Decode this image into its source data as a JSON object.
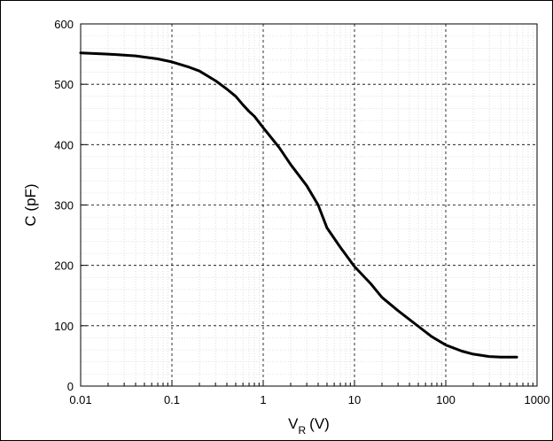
{
  "chart_data": {
    "type": "line",
    "x_scale": "log",
    "xlim": [
      0.01,
      1000
    ],
    "ylim": [
      0,
      600
    ],
    "x_ticks": [
      0.01,
      0.1,
      1,
      10,
      100,
      1000
    ],
    "x_tick_labels": [
      "0.01",
      "0.1",
      "1",
      "10",
      "100",
      "1000"
    ],
    "y_ticks": [
      0,
      100,
      200,
      300,
      400,
      500,
      600
    ],
    "y_tick_labels": [
      "0",
      "100",
      "200",
      "300",
      "400",
      "500",
      "600"
    ],
    "xlabel_main": "V",
    "xlabel_sub": "R",
    "xlabel_unit": "(V)",
    "ylabel": "C (pF)",
    "grid": true,
    "line_color": "#000000",
    "series": [
      {
        "x": [
          0.01,
          0.02,
          0.04,
          0.07,
          0.1,
          0.15,
          0.2,
          0.3,
          0.4,
          0.5,
          0.6,
          0.7,
          0.8,
          1.0,
          1.5,
          2,
          3,
          4,
          5,
          7,
          10,
          15,
          20,
          30,
          50,
          70,
          100,
          150,
          200,
          300,
          400,
          600
        ],
        "y": [
          552,
          550,
          547,
          542,
          537,
          529,
          522,
          506,
          492,
          480,
          466,
          455,
          447,
          428,
          395,
          367,
          332,
          300,
          262,
          230,
          198,
          170,
          147,
          125,
          99,
          82,
          68,
          58,
          53,
          49,
          48,
          48
        ]
      }
    ]
  }
}
